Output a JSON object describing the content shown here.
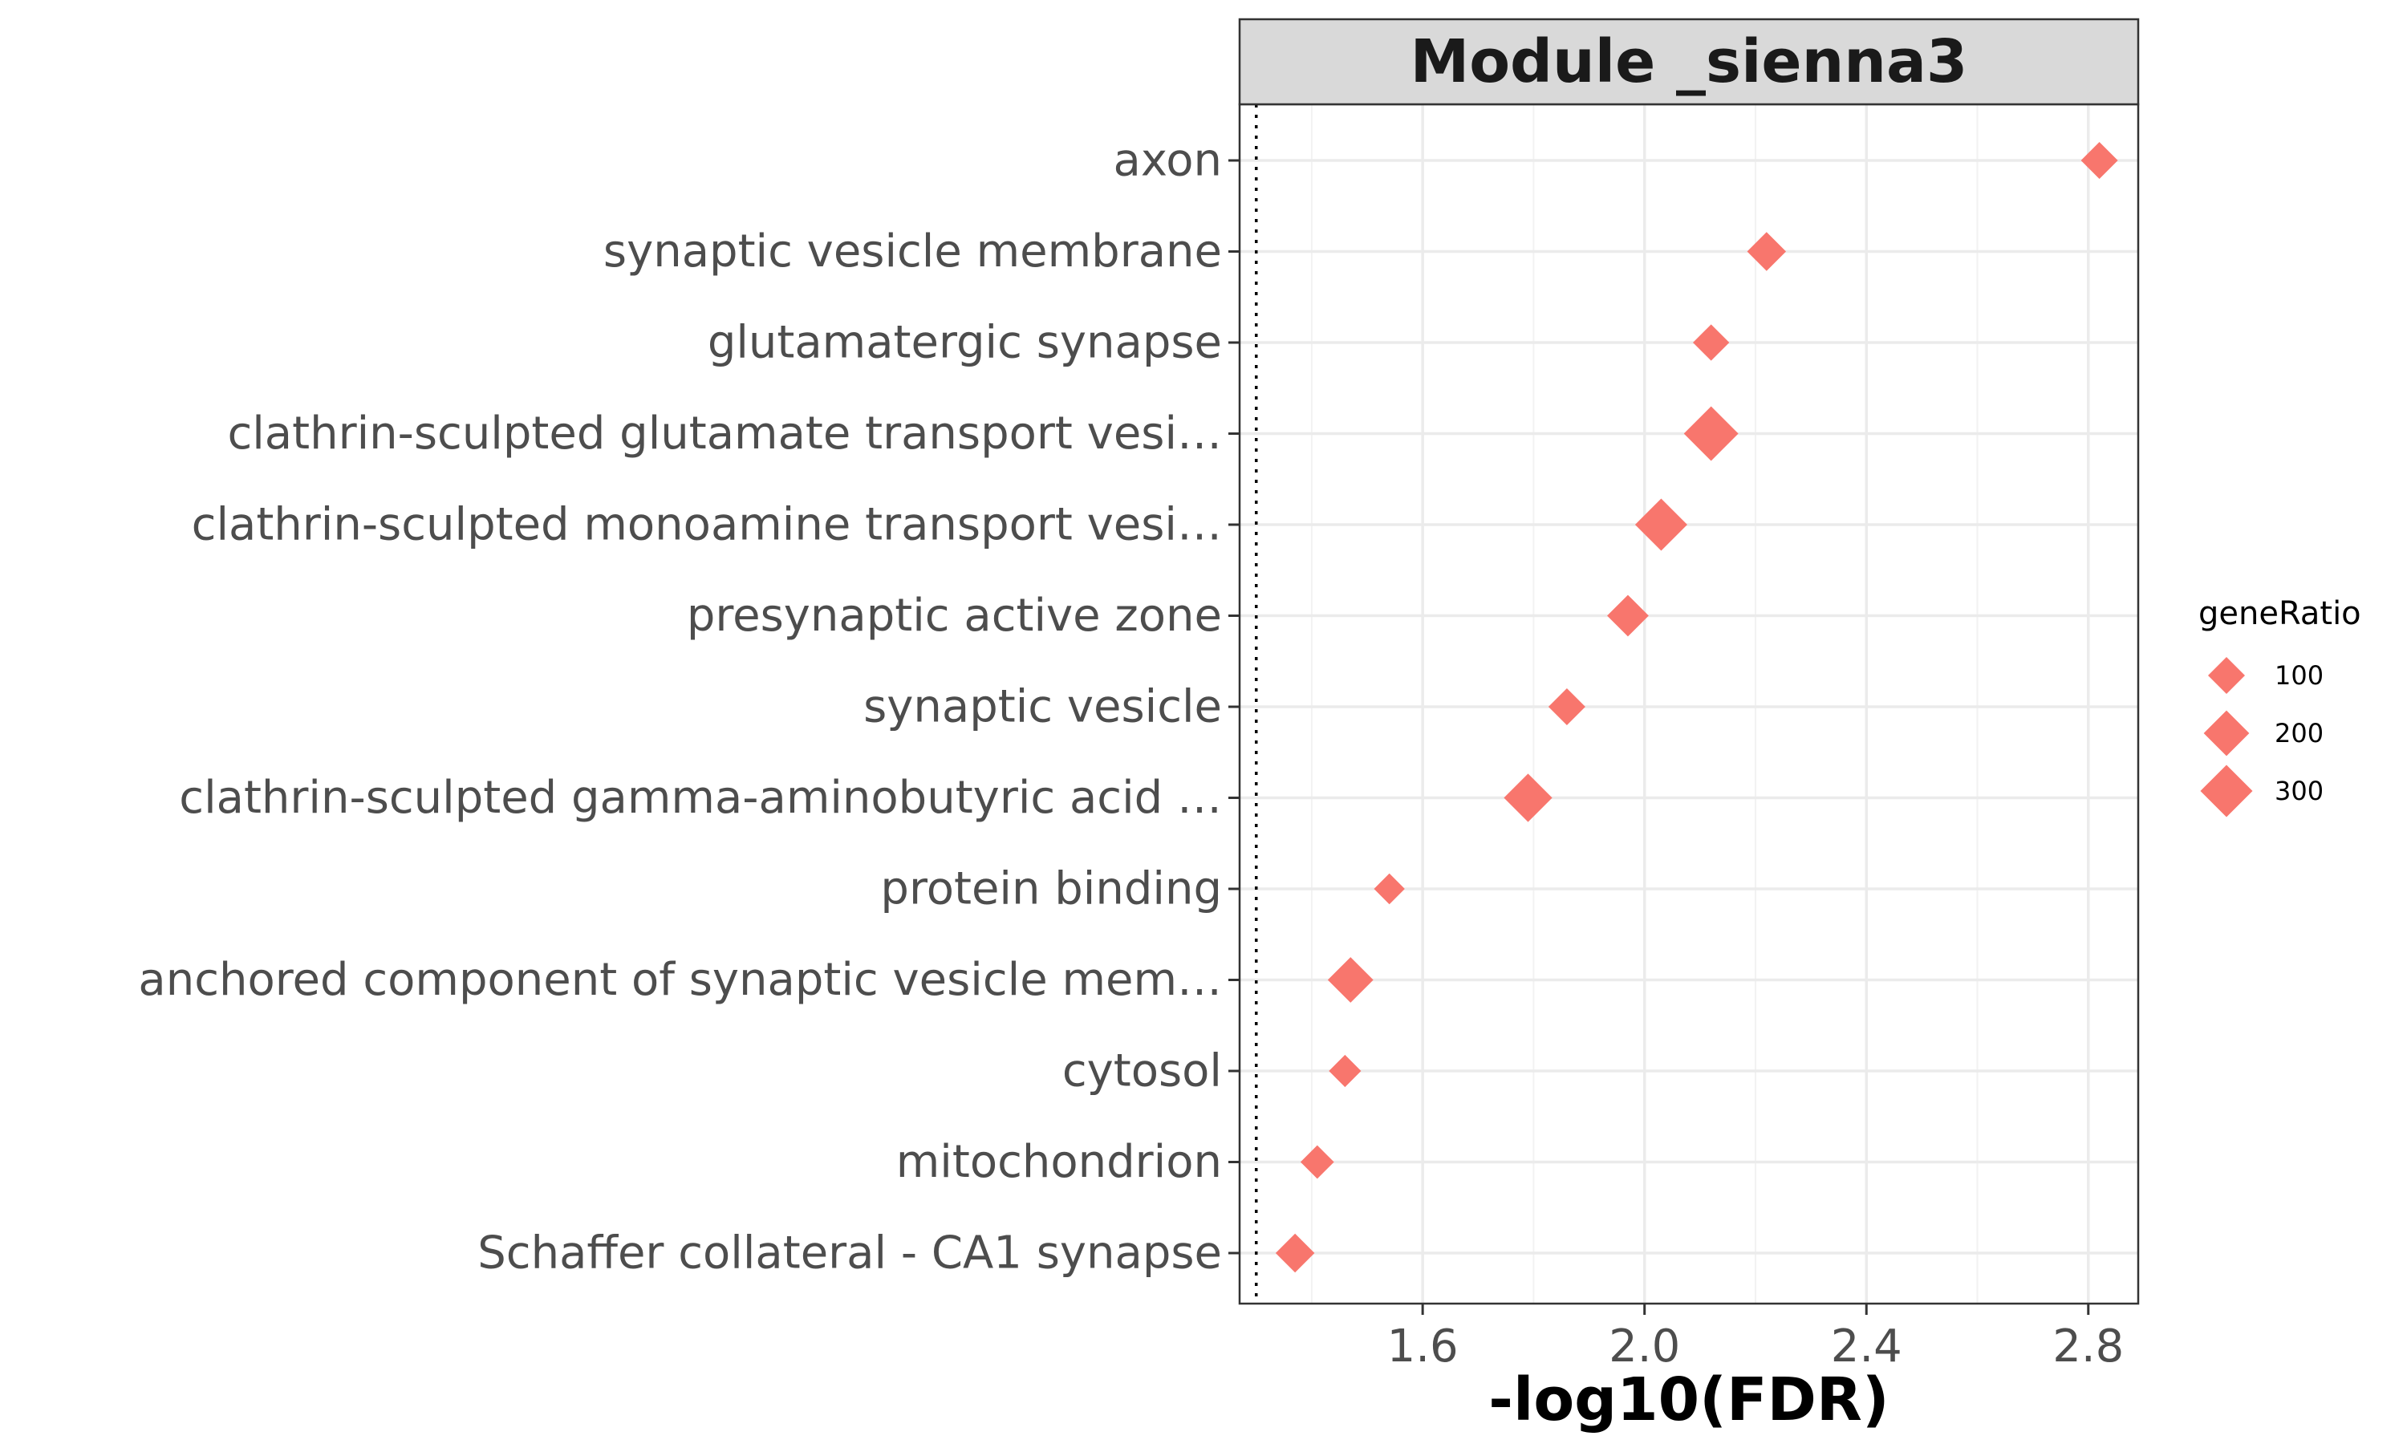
{
  "chart_data": {
    "type": "scatter",
    "strip_title": "Module _sienna3",
    "xlabel": "-log10(FDR)",
    "ylabel": "",
    "xlim": [
      1.27,
      2.89
    ],
    "x_ticks": [
      "1.6",
      "2.0",
      "2.4",
      "2.8"
    ],
    "x_tick_values": [
      1.6,
      2.0,
      2.4,
      2.8
    ],
    "threshold_line": 1.3,
    "grid": true,
    "point_color": "#F8766D",
    "point_shape": "diamond",
    "categories": [
      "axon",
      "synaptic vesicle membrane",
      "glutamatergic synapse",
      "clathrin-sculpted glutamate transport vesi…",
      "clathrin-sculpted monoamine transport vesi…",
      "presynaptic active zone",
      "synaptic vesicle",
      "clathrin-sculpted gamma-aminobutyric acid …",
      "protein binding",
      "anchored component of synaptic vesicle mem…",
      "cytosol",
      "mitochondrion",
      "Schaffer collateral - CA1 synapse"
    ],
    "x": [
      2.82,
      2.22,
      2.12,
      2.12,
      2.03,
      1.97,
      1.86,
      1.79,
      1.54,
      1.47,
      1.46,
      1.41,
      1.37
    ],
    "sizes": [
      100,
      120,
      95,
      340,
      300,
      150,
      100,
      240,
      50,
      200,
      60,
      70,
      120
    ],
    "legend": {
      "title": "geneRatio",
      "position": "right",
      "entries": [
        {
          "label": "100",
          "value": 100
        },
        {
          "label": "200",
          "value": 200
        },
        {
          "label": "300",
          "value": 300
        }
      ]
    }
  }
}
